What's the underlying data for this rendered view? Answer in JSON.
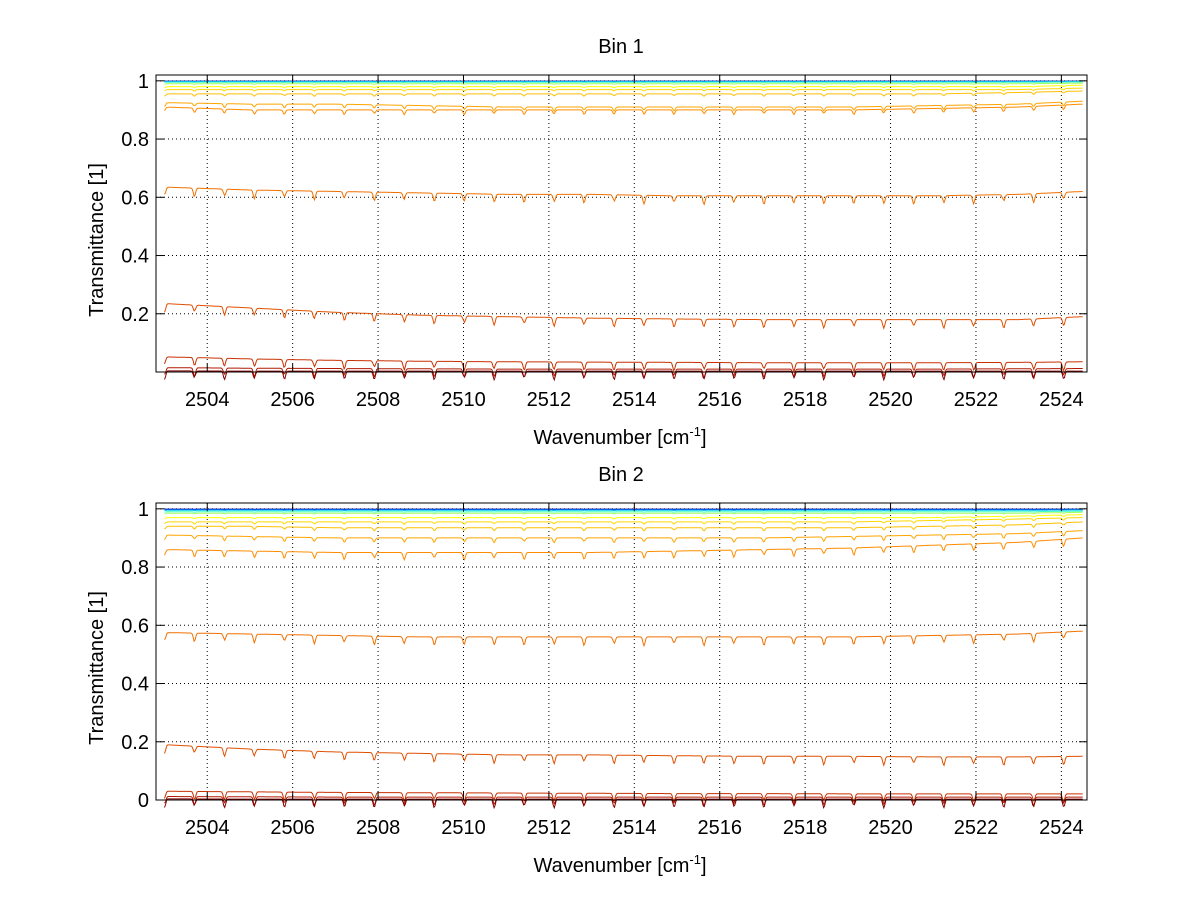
{
  "figure": {
    "background": "#ffffff"
  },
  "chart_data": [
    {
      "type": "line",
      "title": "Bin 1",
      "xlabel": "Wavenumber [cm",
      "xlabel_sup": "-1",
      "xlabel_end": "]",
      "ylabel": "Transmittance [1]",
      "xlim": [
        2502.8,
        2524.6
      ],
      "ylim": [
        0,
        1.02
      ],
      "xticks": [
        2504,
        2506,
        2508,
        2510,
        2512,
        2514,
        2516,
        2518,
        2520,
        2522,
        2524
      ],
      "yticks": [
        0.2,
        0.4,
        0.6,
        0.8,
        1
      ],
      "ytick_labels": [
        "0.2",
        "0.4",
        "0.6",
        "0.8",
        "1"
      ],
      "grid": true,
      "x": [
        2503,
        2505,
        2507,
        2509,
        2511,
        2513,
        2515,
        2517,
        2519,
        2521,
        2523,
        2524.5
      ],
      "series": [
        {
          "color": "#00008f",
          "values": [
            0.999,
            0.999,
            0.999,
            0.999,
            0.999,
            0.999,
            0.999,
            0.999,
            0.999,
            0.999,
            0.999,
            0.999
          ]
        },
        {
          "color": "#0060ff",
          "values": [
            0.998,
            0.998,
            0.998,
            0.998,
            0.998,
            0.998,
            0.998,
            0.998,
            0.998,
            0.998,
            0.998,
            0.998
          ]
        },
        {
          "color": "#00c0ff",
          "values": [
            0.997,
            0.997,
            0.997,
            0.997,
            0.997,
            0.997,
            0.997,
            0.997,
            0.997,
            0.997,
            0.997,
            0.997
          ]
        },
        {
          "color": "#40ffbf",
          "values": [
            0.995,
            0.995,
            0.995,
            0.995,
            0.995,
            0.995,
            0.995,
            0.995,
            0.995,
            0.995,
            0.995,
            0.996
          ]
        },
        {
          "color": "#9fff60",
          "values": [
            0.99,
            0.99,
            0.99,
            0.99,
            0.99,
            0.99,
            0.99,
            0.99,
            0.99,
            0.99,
            0.99,
            0.992
          ]
        },
        {
          "color": "#ffff00",
          "values": [
            0.98,
            0.98,
            0.98,
            0.98,
            0.98,
            0.98,
            0.98,
            0.98,
            0.98,
            0.98,
            0.98,
            0.985
          ]
        },
        {
          "color": "#ffd700",
          "values": [
            0.97,
            0.97,
            0.97,
            0.97,
            0.97,
            0.97,
            0.97,
            0.97,
            0.97,
            0.97,
            0.97,
            0.975
          ]
        },
        {
          "color": "#ffbf00",
          "values": [
            0.955,
            0.955,
            0.955,
            0.955,
            0.955,
            0.955,
            0.955,
            0.955,
            0.955,
            0.955,
            0.96,
            0.965
          ]
        },
        {
          "color": "#ffa500",
          "values": [
            0.925,
            0.92,
            0.92,
            0.915,
            0.91,
            0.91,
            0.91,
            0.91,
            0.91,
            0.915,
            0.92,
            0.93
          ]
        },
        {
          "color": "#ff8c00",
          "values": [
            0.91,
            0.9,
            0.9,
            0.9,
            0.9,
            0.9,
            0.9,
            0.9,
            0.9,
            0.905,
            0.91,
            0.92
          ]
        },
        {
          "color": "#f07000",
          "values": [
            0.635,
            0.625,
            0.62,
            0.615,
            0.61,
            0.61,
            0.605,
            0.605,
            0.605,
            0.605,
            0.61,
            0.62
          ]
        },
        {
          "color": "#e05000",
          "values": [
            0.235,
            0.22,
            0.205,
            0.195,
            0.19,
            0.185,
            0.182,
            0.18,
            0.18,
            0.18,
            0.18,
            0.19
          ]
        },
        {
          "color": "#c83000",
          "values": [
            0.052,
            0.045,
            0.04,
            0.037,
            0.035,
            0.034,
            0.033,
            0.032,
            0.032,
            0.032,
            0.033,
            0.035
          ]
        },
        {
          "color": "#b01800",
          "values": [
            0.015,
            0.013,
            0.012,
            0.011,
            0.01,
            0.01,
            0.01,
            0.01,
            0.01,
            0.01,
            0.011,
            0.012
          ]
        },
        {
          "color": "#800000",
          "values": [
            0.004,
            0.003,
            0.003,
            0.003,
            0.003,
            0.003,
            0.003,
            0.003,
            0.003,
            0.003,
            0.003,
            0.003
          ]
        }
      ]
    },
    {
      "type": "line",
      "title": "Bin 2",
      "xlabel": "Wavenumber [cm",
      "xlabel_sup": "-1",
      "xlabel_end": "]",
      "ylabel": "Transmittance [1]",
      "xlim": [
        2502.8,
        2524.6
      ],
      "ylim": [
        0,
        1.02
      ],
      "xticks": [
        2504,
        2506,
        2508,
        2510,
        2512,
        2514,
        2516,
        2518,
        2520,
        2522,
        2524
      ],
      "yticks": [
        0,
        0.2,
        0.4,
        0.6,
        0.8,
        1
      ],
      "ytick_labels": [
        "0",
        "0.2",
        "0.4",
        "0.6",
        "0.8",
        "1"
      ],
      "grid": true,
      "x": [
        2503,
        2505,
        2507,
        2509,
        2511,
        2513,
        2515,
        2517,
        2519,
        2521,
        2523,
        2524.5
      ],
      "series": [
        {
          "color": "#00008f",
          "values": [
            0.999,
            0.999,
            0.999,
            0.999,
            0.999,
            0.999,
            0.999,
            0.999,
            0.999,
            0.999,
            0.999,
            0.999
          ]
        },
        {
          "color": "#0060ff",
          "values": [
            0.997,
            0.997,
            0.997,
            0.997,
            0.997,
            0.997,
            0.997,
            0.997,
            0.997,
            0.997,
            0.997,
            0.997
          ]
        },
        {
          "color": "#00c0ff",
          "values": [
            0.995,
            0.995,
            0.995,
            0.995,
            0.995,
            0.995,
            0.995,
            0.995,
            0.995,
            0.995,
            0.995,
            0.996
          ]
        },
        {
          "color": "#40ffbf",
          "values": [
            0.99,
            0.99,
            0.99,
            0.99,
            0.99,
            0.99,
            0.99,
            0.99,
            0.99,
            0.99,
            0.99,
            0.992
          ]
        },
        {
          "color": "#9fff60",
          "values": [
            0.985,
            0.985,
            0.985,
            0.985,
            0.985,
            0.985,
            0.985,
            0.985,
            0.985,
            0.985,
            0.985,
            0.988
          ]
        },
        {
          "color": "#ffff00",
          "values": [
            0.97,
            0.97,
            0.97,
            0.97,
            0.97,
            0.97,
            0.97,
            0.97,
            0.97,
            0.97,
            0.975,
            0.98
          ]
        },
        {
          "color": "#ffd700",
          "values": [
            0.955,
            0.955,
            0.955,
            0.955,
            0.955,
            0.955,
            0.955,
            0.955,
            0.955,
            0.96,
            0.965,
            0.97
          ]
        },
        {
          "color": "#ffbf00",
          "values": [
            0.94,
            0.94,
            0.935,
            0.935,
            0.935,
            0.935,
            0.935,
            0.935,
            0.935,
            0.94,
            0.945,
            0.955
          ]
        },
        {
          "color": "#ffa500",
          "values": [
            0.91,
            0.905,
            0.9,
            0.9,
            0.9,
            0.9,
            0.9,
            0.9,
            0.905,
            0.91,
            0.915,
            0.925
          ]
        },
        {
          "color": "#ff8c00",
          "values": [
            0.86,
            0.855,
            0.85,
            0.85,
            0.85,
            0.85,
            0.855,
            0.86,
            0.865,
            0.875,
            0.885,
            0.9
          ]
        },
        {
          "color": "#f07000",
          "values": [
            0.575,
            0.57,
            0.565,
            0.56,
            0.56,
            0.56,
            0.56,
            0.56,
            0.56,
            0.565,
            0.57,
            0.58
          ]
        },
        {
          "color": "#e05000",
          "values": [
            0.19,
            0.175,
            0.165,
            0.16,
            0.155,
            0.155,
            0.152,
            0.15,
            0.15,
            0.148,
            0.148,
            0.15
          ]
        },
        {
          "color": "#c83000",
          "values": [
            0.03,
            0.028,
            0.026,
            0.025,
            0.024,
            0.023,
            0.022,
            0.022,
            0.021,
            0.021,
            0.021,
            0.021
          ]
        },
        {
          "color": "#b01800",
          "values": [
            0.012,
            0.011,
            0.01,
            0.01,
            0.01,
            0.01,
            0.01,
            0.01,
            0.01,
            0.01,
            0.01,
            0.01
          ]
        },
        {
          "color": "#800000",
          "values": [
            0.004,
            0.003,
            0.003,
            0.003,
            0.003,
            0.003,
            0.003,
            0.003,
            0.003,
            0.003,
            0.003,
            0.003
          ]
        }
      ]
    }
  ]
}
